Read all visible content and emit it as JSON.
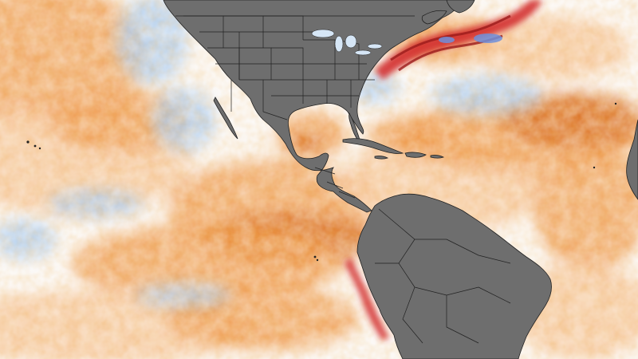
{
  "map": {
    "kind": "sea-surface-temperature-anomaly",
    "region": "Americas",
    "land_color": "#6e6e6e",
    "border_color": "#222222",
    "ocean_neutral_color": "#fbf7f3",
    "warm_colors": [
      "#f7c79a",
      "#ef9a4c",
      "#d86a1c",
      "#b84a10",
      "#d32f2f",
      "#9b1a1a"
    ],
    "cool_colors": [
      "#d6e6f6",
      "#a9c9ec",
      "#6f8fdc"
    ],
    "features": [
      "north-america-landmass",
      "central-america-landmass",
      "south-america-landmass",
      "caribbean-islands",
      "gulf-of-mexico-warm-anomaly",
      "gulf-stream-hot-anomaly",
      "peru-coast-hot-anomaly",
      "california-coast-cool-anomaly"
    ]
  }
}
